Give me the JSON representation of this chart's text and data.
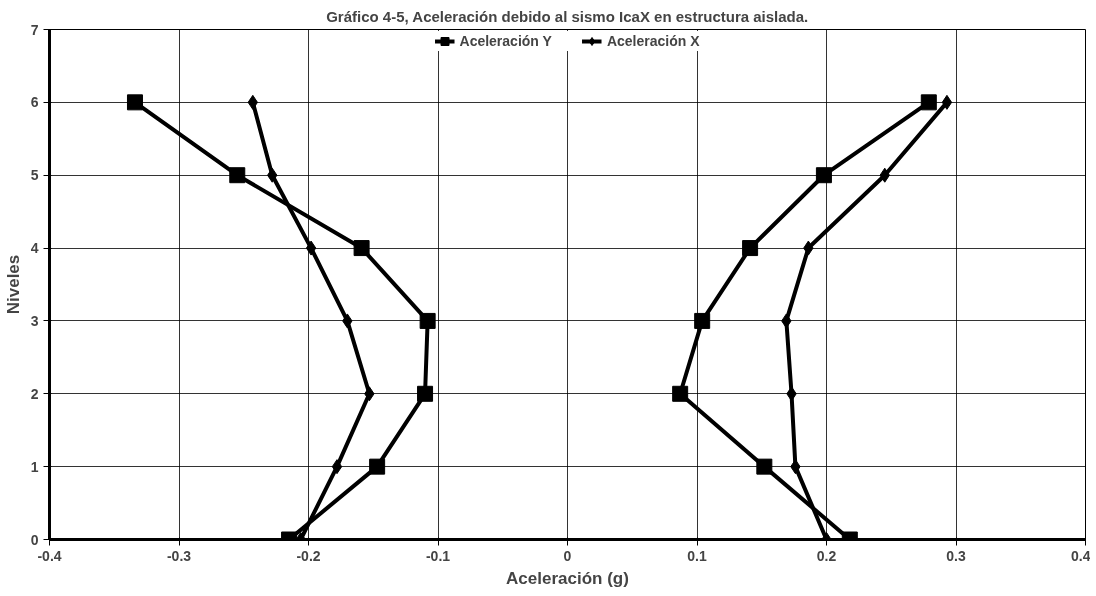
{
  "chart_data": {
    "type": "line",
    "title": "Gráfico 4-5, Aceleración debido al sismo IcaX en estructura aislada.",
    "xlabel": "Aceleración (g)",
    "ylabel": "Niveles",
    "xlim": [
      -0.4,
      0.4
    ],
    "xticks": [
      -0.4,
      -0.3,
      -0.2,
      -0.1,
      0,
      0.1,
      0.2,
      0.3,
      0.4
    ],
    "ylim": [
      0,
      7
    ],
    "yticks": [
      0,
      1,
      2,
      3,
      4,
      5,
      6,
      7
    ],
    "grid": true,
    "legend": "top",
    "line_style": "solid",
    "series": [
      {
        "name": "Aceleración Y",
        "color": "#000000",
        "marker": "square",
        "x": [
          -0.215,
          -0.147,
          -0.11,
          -0.108,
          -0.159,
          -0.255,
          -0.334
        ],
        "values": [
          0,
          1,
          2,
          3,
          4,
          5,
          6
        ]
      },
      {
        "name": "Aceleración X",
        "color": "#000000",
        "marker": "diamond",
        "x": [
          -0.206,
          -0.178,
          -0.153,
          -0.17,
          -0.198,
          -0.228,
          -0.243
        ],
        "values": [
          0,
          1,
          2,
          3,
          4,
          5,
          6
        ]
      },
      {
        "color": "#000000",
        "marker": "square",
        "x": [
          0.218,
          0.152,
          0.087,
          0.104,
          0.141,
          0.198,
          0.279
        ],
        "values": [
          0,
          1,
          2,
          3,
          4,
          5,
          6
        ]
      },
      {
        "color": "#000000",
        "marker": "diamond",
        "x": [
          0.2,
          0.176,
          0.173,
          0.169,
          0.186,
          0.245,
          0.293
        ],
        "values": [
          0,
          1,
          2,
          3,
          4,
          5,
          6
        ]
      }
    ]
  }
}
